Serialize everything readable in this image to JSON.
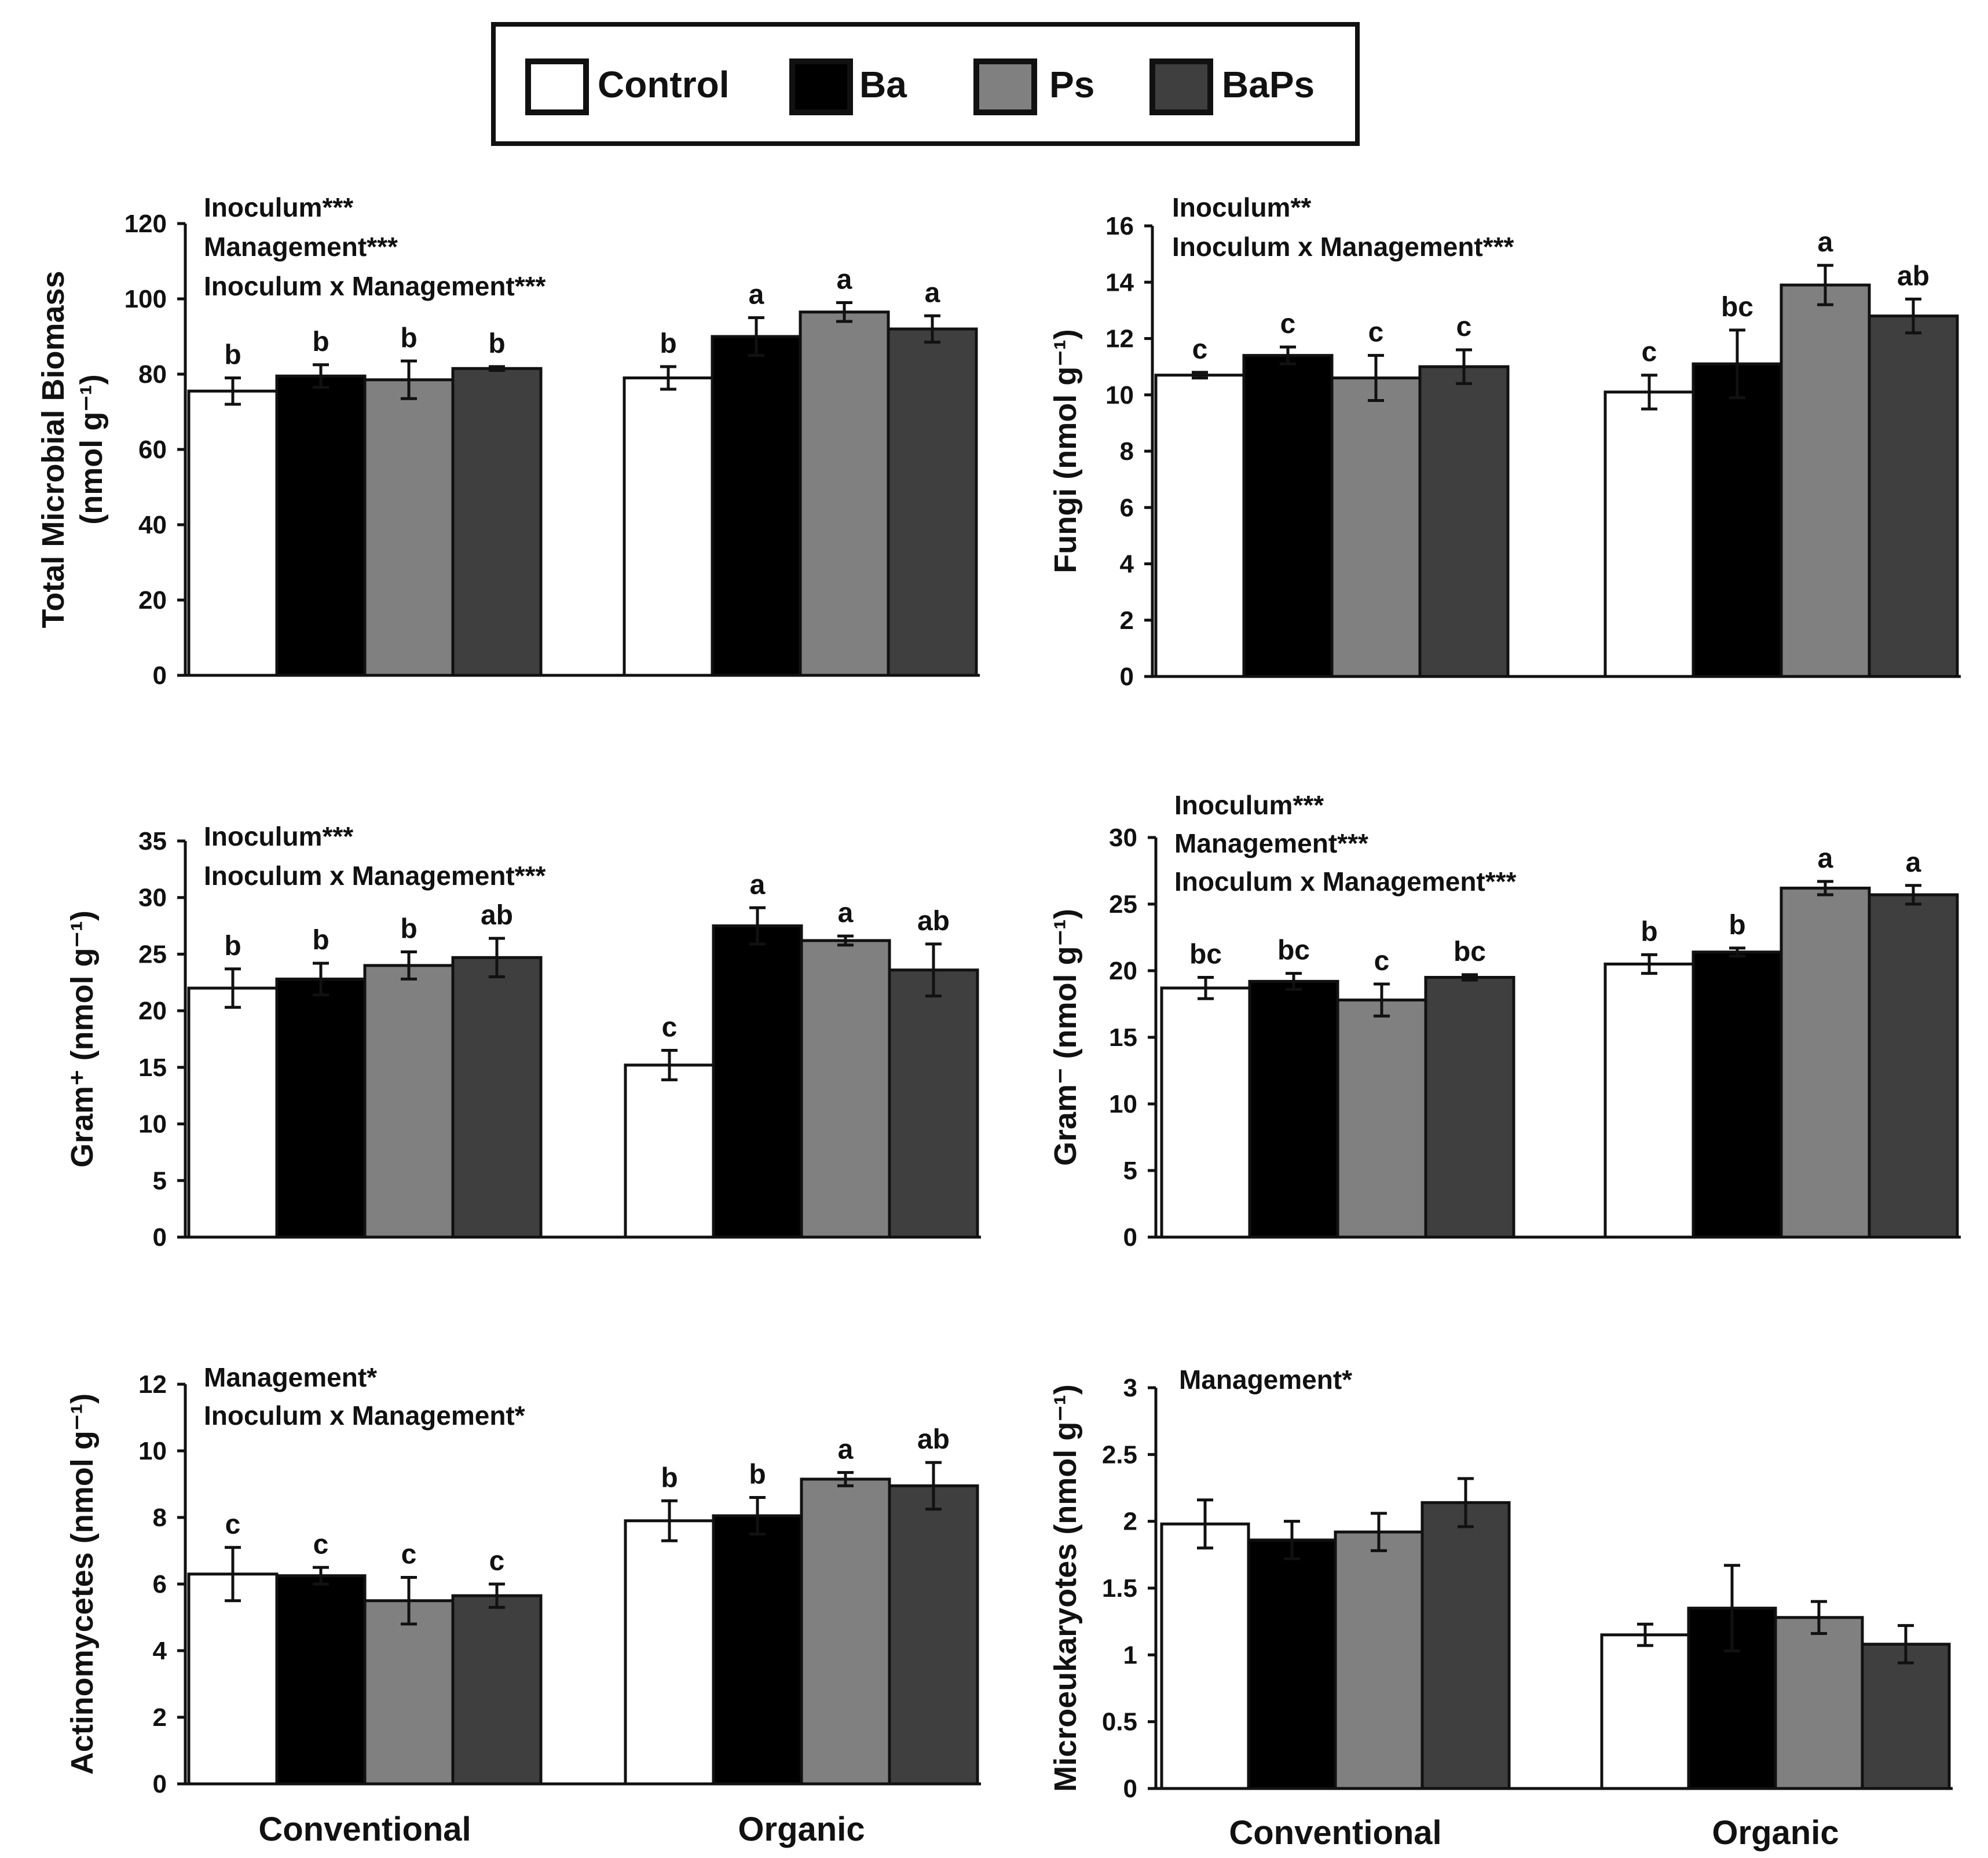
{
  "legend": {
    "items": [
      {
        "label": "Control",
        "color": "#ffffff"
      },
      {
        "label": "Ba",
        "color": "#000000"
      },
      {
        "label": "Ps",
        "color": "#808080"
      },
      {
        "label": "BaPs",
        "color": "#3f3f3f"
      }
    ]
  },
  "chart_data": [
    {
      "type": "bar",
      "ylabel_lines": [
        "Total Microbial Biomass",
        "(nmol g⁻¹)"
      ],
      "annotations": [
        "Inoculum***",
        "Management***",
        "Inoculum x Management***"
      ],
      "categories": [
        "Conventional",
        "Organic"
      ],
      "ylim": [
        0,
        120
      ],
      "yticks": [
        "0",
        "20",
        "40",
        "60",
        "80",
        "100",
        "120"
      ],
      "grid": false,
      "series": [
        {
          "name": "Control",
          "values": [
            75.5,
            79
          ],
          "errors": [
            3.5,
            3
          ],
          "letters": [
            "b",
            "b"
          ]
        },
        {
          "name": "Ba",
          "values": [
            79.5,
            90
          ],
          "errors": [
            3,
            5
          ],
          "letters": [
            "b",
            "a"
          ]
        },
        {
          "name": "Ps",
          "values": [
            78.5,
            96.5
          ],
          "errors": [
            5,
            2.5
          ],
          "letters": [
            "b",
            "a"
          ]
        },
        {
          "name": "BaPs",
          "values": [
            81.5,
            92
          ],
          "errors": [
            0.5,
            3.5
          ],
          "letters": [
            "b",
            "a"
          ]
        }
      ]
    },
    {
      "type": "bar",
      "ylabel_lines": [
        "Fungi (nmol g⁻¹)"
      ],
      "annotations": [
        "Inoculum**",
        "Inoculum x Management***"
      ],
      "categories": [
        "Conventional",
        "Organic"
      ],
      "ylim": [
        0,
        16
      ],
      "yticks": [
        "0",
        "2",
        "4",
        "6",
        "8",
        "10",
        "12",
        "14",
        "16"
      ],
      "grid": false,
      "series": [
        {
          "name": "Control",
          "values": [
            10.7,
            10.1
          ],
          "errors": [
            0.1,
            0.6
          ],
          "letters": [
            "c",
            "c"
          ]
        },
        {
          "name": "Ba",
          "values": [
            11.4,
            11.1
          ],
          "errors": [
            0.3,
            1.2
          ],
          "letters": [
            "c",
            "bc"
          ]
        },
        {
          "name": "Ps",
          "values": [
            10.6,
            13.9
          ],
          "errors": [
            0.8,
            0.7
          ],
          "letters": [
            "c",
            "a"
          ]
        },
        {
          "name": "BaPs",
          "values": [
            11.0,
            12.8
          ],
          "errors": [
            0.6,
            0.6
          ],
          "letters": [
            "c",
            "ab"
          ]
        }
      ]
    },
    {
      "type": "bar",
      "ylabel_lines": [
        "Gram⁺ (nmol g⁻¹)"
      ],
      "annotations": [
        "Inoculum***",
        "Inoculum x Management***"
      ],
      "categories": [
        "Conventional",
        "Organic"
      ],
      "ylim": [
        0,
        35
      ],
      "yticks": [
        "0",
        "5",
        "10",
        "15",
        "20",
        "25",
        "30",
        "35"
      ],
      "grid": false,
      "series": [
        {
          "name": "Control",
          "values": [
            22,
            15.2
          ],
          "errors": [
            1.7,
            1.3
          ],
          "letters": [
            "b",
            "c"
          ]
        },
        {
          "name": "Ba",
          "values": [
            22.8,
            27.5
          ],
          "errors": [
            1.4,
            1.6
          ],
          "letters": [
            "b",
            "a"
          ]
        },
        {
          "name": "Ps",
          "values": [
            24,
            26.2
          ],
          "errors": [
            1.2,
            0.4
          ],
          "letters": [
            "b",
            "a"
          ]
        },
        {
          "name": "BaPs",
          "values": [
            24.7,
            23.6
          ],
          "errors": [
            1.7,
            2.3
          ],
          "letters": [
            "ab",
            "ab"
          ]
        }
      ]
    },
    {
      "type": "bar",
      "ylabel_lines": [
        "Gram⁻ (nmol g⁻¹)"
      ],
      "annotations": [
        "Inoculum***",
        "Management***",
        "Inoculum x Management***"
      ],
      "categories": [
        "Conventional",
        "Organic"
      ],
      "ylim": [
        0,
        30
      ],
      "yticks": [
        "0",
        "5",
        "10",
        "15",
        "20",
        "25",
        "30"
      ],
      "grid": false,
      "series": [
        {
          "name": "Control",
          "values": [
            18.7,
            20.5
          ],
          "errors": [
            0.8,
            0.7
          ],
          "letters": [
            "bc",
            "b"
          ]
        },
        {
          "name": "Ba",
          "values": [
            19.2,
            21.4
          ],
          "errors": [
            0.6,
            0.3
          ],
          "letters": [
            "bc",
            "b"
          ]
        },
        {
          "name": "Ps",
          "values": [
            17.8,
            26.2
          ],
          "errors": [
            1.2,
            0.5
          ],
          "letters": [
            "c",
            "a"
          ]
        },
        {
          "name": "BaPs",
          "values": [
            19.5,
            25.7
          ],
          "errors": [
            0.2,
            0.7
          ],
          "letters": [
            "bc",
            "a"
          ]
        }
      ]
    },
    {
      "type": "bar",
      "ylabel_lines": [
        "Actinomycetes (nmol g⁻¹)"
      ],
      "annotations": [
        "Management*",
        "Inoculum x Management*"
      ],
      "categories": [
        "Conventional",
        "Organic"
      ],
      "ylim": [
        0,
        12
      ],
      "yticks": [
        "0",
        "2",
        "4",
        "6",
        "8",
        "10",
        "12"
      ],
      "grid": false,
      "series": [
        {
          "name": "Control",
          "values": [
            6.3,
            7.9
          ],
          "errors": [
            0.8,
            0.6
          ],
          "letters": [
            "c",
            "b"
          ]
        },
        {
          "name": "Ba",
          "values": [
            6.25,
            8.05
          ],
          "errors": [
            0.25,
            0.55
          ],
          "letters": [
            "c",
            "b"
          ]
        },
        {
          "name": "Ps",
          "values": [
            5.5,
            9.15
          ],
          "errors": [
            0.7,
            0.2
          ],
          "letters": [
            "c",
            "a"
          ]
        },
        {
          "name": "BaPs",
          "values": [
            5.65,
            8.95
          ],
          "errors": [
            0.35,
            0.7
          ],
          "letters": [
            "c",
            "ab"
          ]
        }
      ]
    },
    {
      "type": "bar",
      "ylabel_lines": [
        "Microeukaryotes (nmol g⁻¹)"
      ],
      "annotations": [
        "Management*"
      ],
      "categories": [
        "Conventional",
        "Organic"
      ],
      "ylim": [
        0,
        3
      ],
      "yticks": [
        "0",
        "0.5",
        "1",
        "1.5",
        "2",
        "2.5",
        "3"
      ],
      "grid": false,
      "series": [
        {
          "name": "Control",
          "values": [
            1.98,
            1.15
          ],
          "errors": [
            0.18,
            0.08
          ],
          "letters": [
            "",
            ""
          ]
        },
        {
          "name": "Ba",
          "values": [
            1.86,
            1.35
          ],
          "errors": [
            0.14,
            0.32
          ],
          "letters": [
            "",
            ""
          ]
        },
        {
          "name": "Ps",
          "values": [
            1.92,
            1.28
          ],
          "errors": [
            0.14,
            0.12
          ],
          "letters": [
            "",
            ""
          ]
        },
        {
          "name": "BaPs",
          "values": [
            2.14,
            1.08
          ],
          "errors": [
            0.18,
            0.14
          ],
          "letters": [
            "",
            ""
          ]
        }
      ]
    }
  ]
}
